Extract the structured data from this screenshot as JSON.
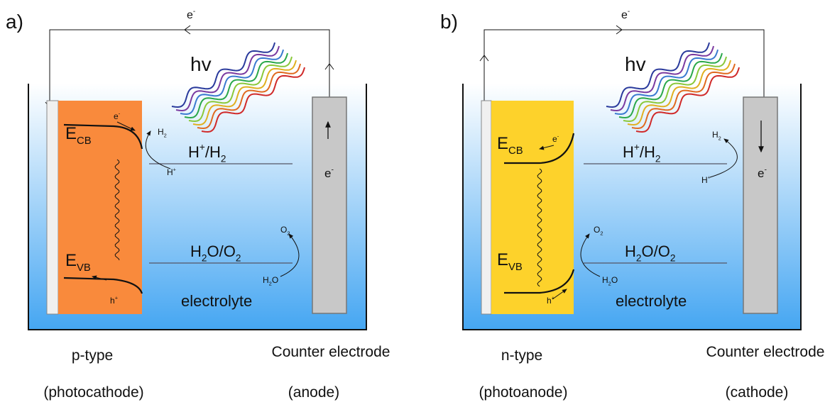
{
  "panels": [
    {
      "label": "a)",
      "circuit_label": [
        "e",
        {
          "sup": "-"
        }
      ],
      "light_label": "hv",
      "cb_label": [
        "E",
        {
          "sub": "CB"
        }
      ],
      "vb_label": [
        "E",
        {
          "sub": "VB"
        }
      ],
      "cb_carrier": [
        "e",
        {
          "sup": "-"
        }
      ],
      "vb_carrier": [
        "h",
        {
          "sup": "+"
        }
      ],
      "product_top": [
        "H",
        {
          "sub": "2"
        }
      ],
      "reactant_top": [
        "H",
        {
          "sup": "+"
        }
      ],
      "couple_top": [
        "H",
        {
          "sup": "+"
        },
        "/H",
        {
          "sub": "2"
        }
      ],
      "couple_bottom": [
        "H",
        {
          "sub": "2"
        },
        "O/O",
        {
          "sub": "2"
        }
      ],
      "product_bottom": [
        "O",
        {
          "sub": "2"
        }
      ],
      "reactant_bottom": [
        "H",
        {
          "sub": "2"
        },
        "O"
      ],
      "electrode_carrier": [
        "e",
        {
          "sup": "-"
        }
      ],
      "electrolyte": "electrolyte",
      "type_label": "p-type",
      "role_label": "(photocathode)",
      "counter_label": "Counter electrode",
      "counter_role": "(anode)"
    },
    {
      "label": "b)",
      "circuit_label": [
        "e",
        {
          "sup": "-"
        }
      ],
      "light_label": "hv",
      "cb_label": [
        "E",
        {
          "sub": "CB"
        }
      ],
      "vb_label": [
        "E",
        {
          "sub": "VB"
        }
      ],
      "cb_carrier": [
        "e",
        {
          "sup": "-"
        }
      ],
      "vb_carrier": [
        "h",
        {
          "sup": "+"
        }
      ],
      "product_top": [
        "H",
        {
          "sub": "2"
        }
      ],
      "reactant_top": [
        "H",
        {
          "sup": "+"
        }
      ],
      "couple_top": [
        "H",
        {
          "sup": "+"
        },
        "/H",
        {
          "sub": "2"
        }
      ],
      "couple_bottom": [
        "H",
        {
          "sub": "2"
        },
        "O/O",
        {
          "sub": "2"
        }
      ],
      "product_bottom": [
        "O",
        {
          "sub": "2"
        }
      ],
      "reactant_bottom": [
        "H",
        {
          "sub": "2"
        },
        "O"
      ],
      "electrode_carrier": [
        "e",
        {
          "sup": "-"
        }
      ],
      "electrolyte": "electrolyte",
      "type_label": "n-type",
      "role_label": "(photoanode)",
      "counter_label": "Counter electrode",
      "counter_role": "(cathode)"
    }
  ]
}
